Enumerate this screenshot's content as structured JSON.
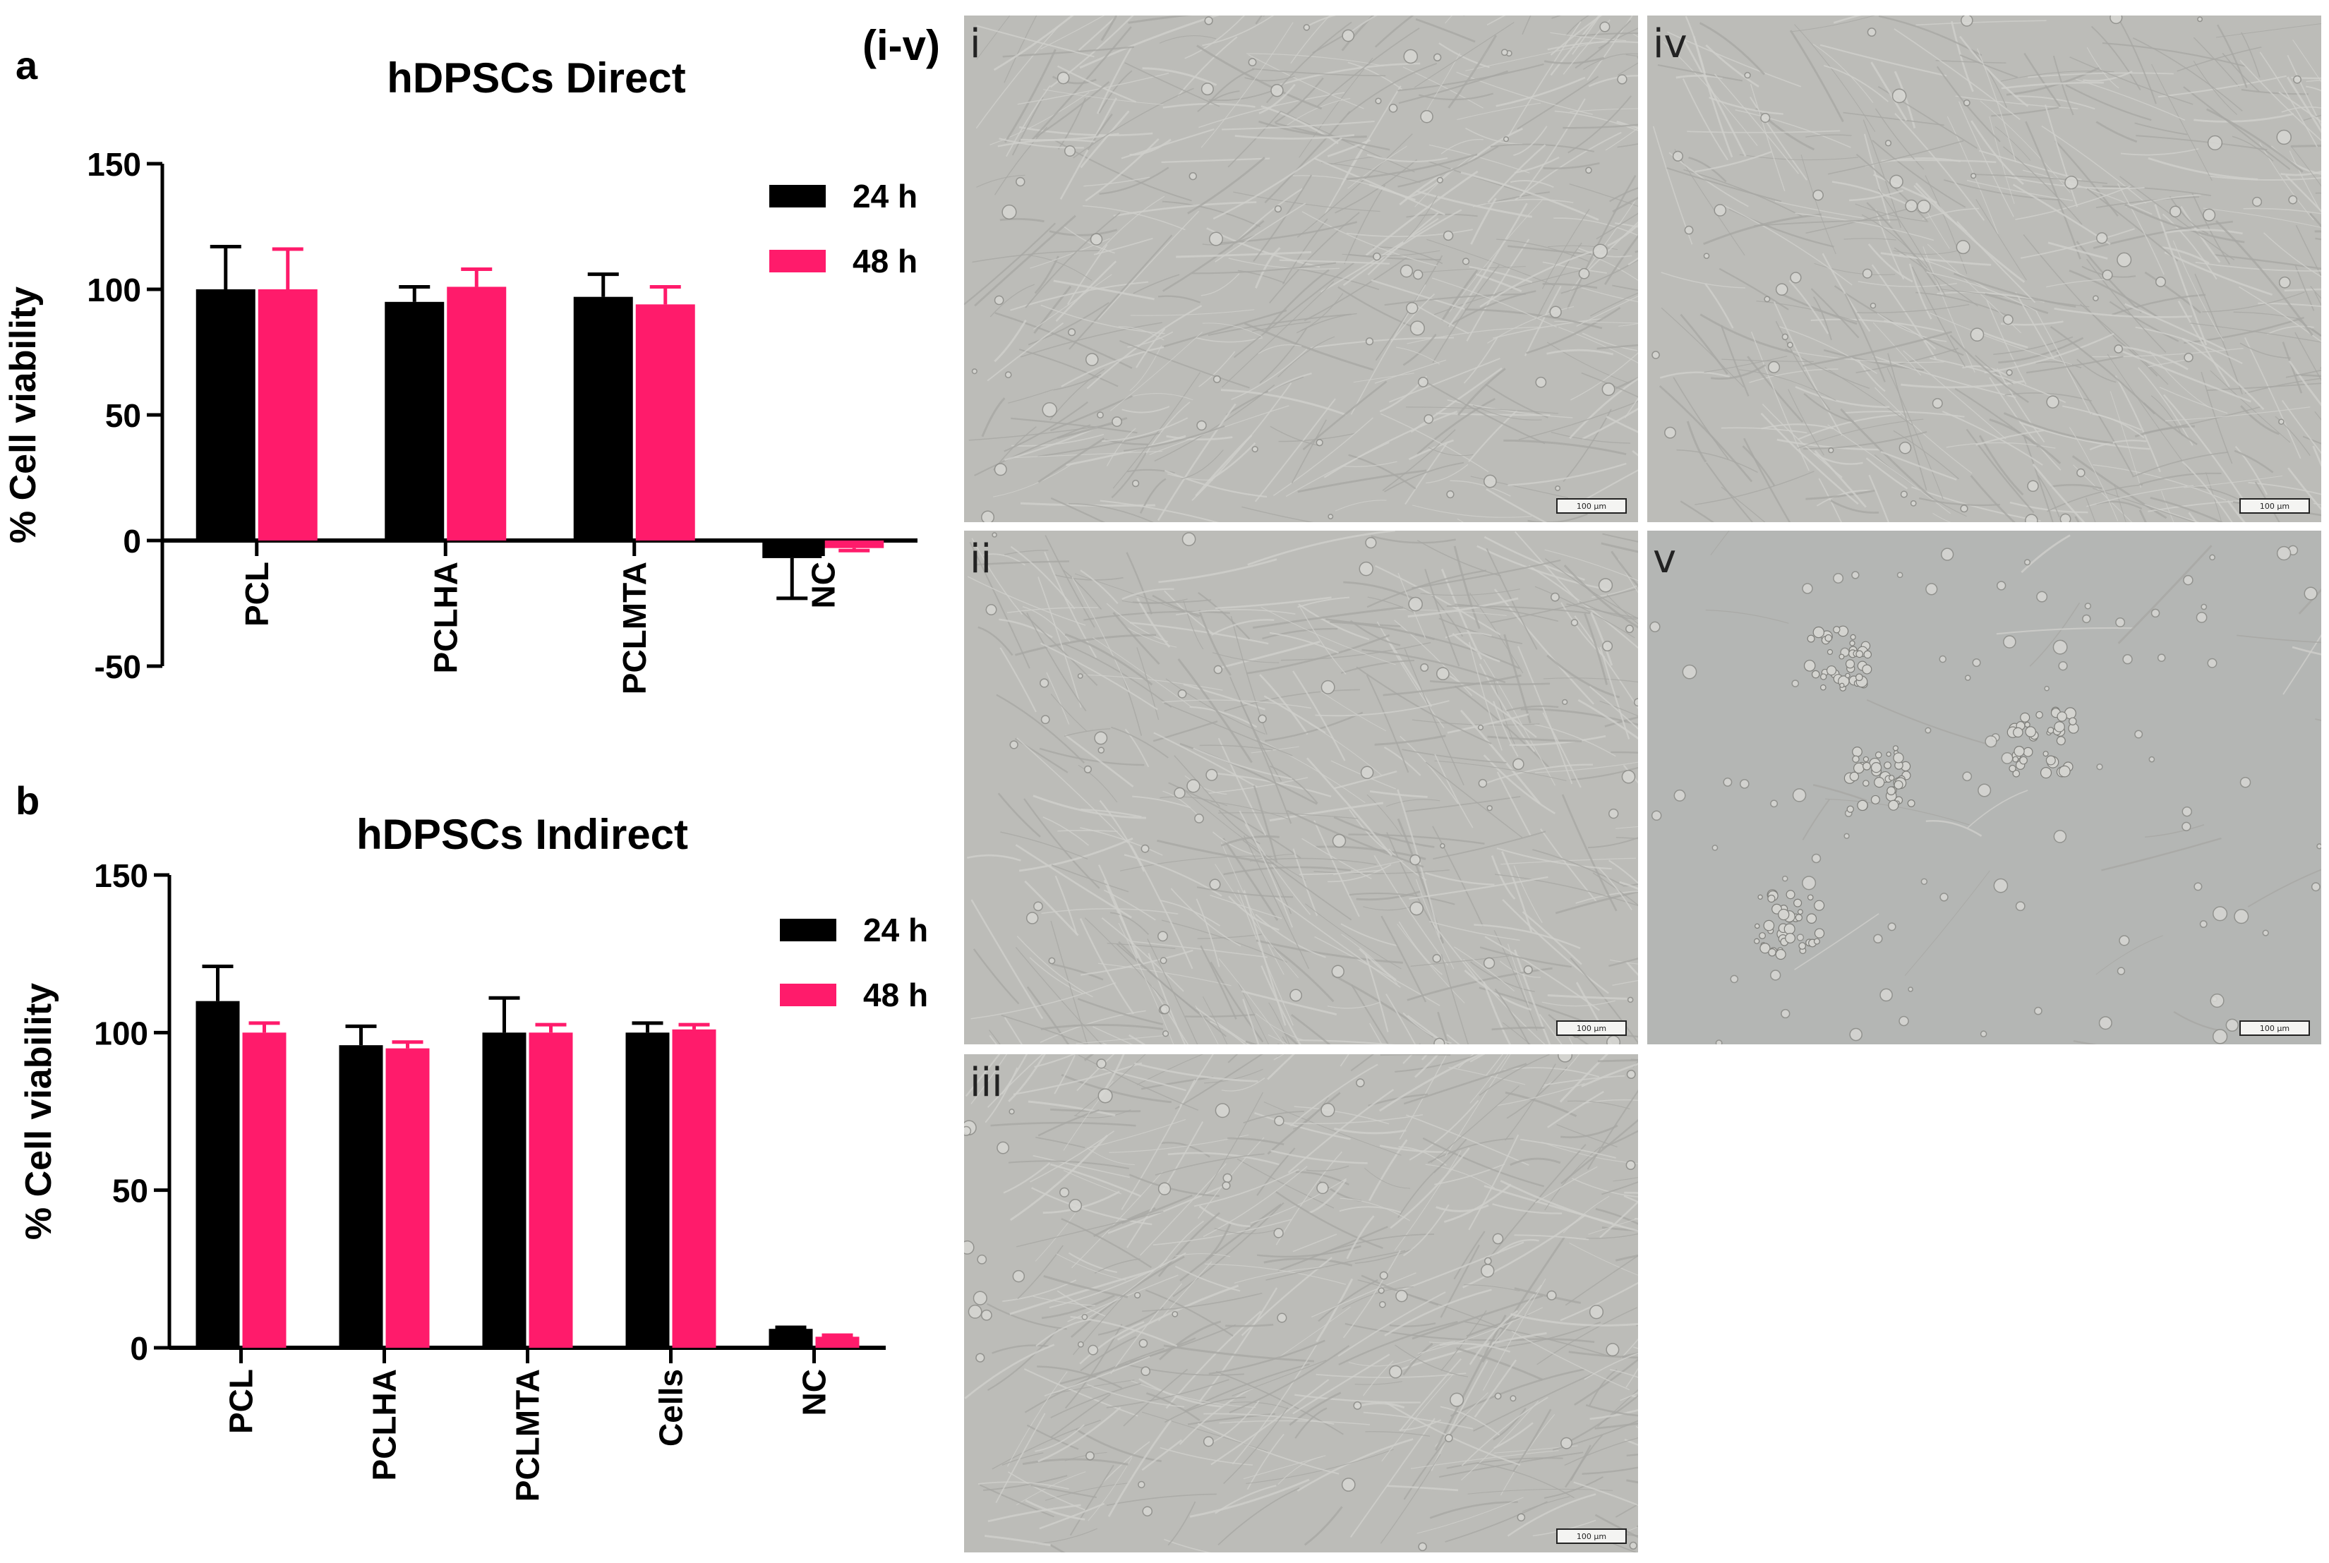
{
  "panel_letters": {
    "a": "a",
    "b": "b"
  },
  "micrograph_group_label": "(i-v)",
  "micrographs": [
    {
      "label": "i",
      "scalebar": "100 µm",
      "density": "dense"
    },
    {
      "label": "ii",
      "scalebar": "100 µm",
      "density": "dense"
    },
    {
      "label": "iii",
      "scalebar": "100 µm",
      "density": "dense"
    },
    {
      "label": "iv",
      "scalebar": "100 µm",
      "density": "dense"
    },
    {
      "label": "v",
      "scalebar": "100 µm",
      "density": "sparse"
    }
  ],
  "colors": {
    "h24": "#000000",
    "h48": "#ff1b6b",
    "micro_bg": "#bcbcb8",
    "micro_fiber": "#a8a8a4"
  },
  "chart_data": [
    {
      "type": "bar",
      "title": "hDPSCs Direct",
      "ylabel": "% Cell viability",
      "xlabel": "",
      "ylim": [
        -50,
        150
      ],
      "yticks": [
        -50,
        0,
        50,
        100,
        150
      ],
      "categories": [
        "PCL",
        "PCLHA",
        "PCLMTA",
        "NC"
      ],
      "series": [
        {
          "name": "24 h",
          "values": [
            100,
            95,
            97,
            -7
          ],
          "errors": [
            17,
            6,
            9,
            16
          ]
        },
        {
          "name": "48 h",
          "values": [
            100,
            101,
            94,
            -3
          ],
          "errors": [
            16,
            7,
            7,
            1
          ]
        }
      ],
      "legend": "top-right",
      "grid": false
    },
    {
      "type": "bar",
      "title": "hDPSCs Indirect",
      "ylabel": "% Cell viability",
      "xlabel": "",
      "ylim": [
        0,
        150
      ],
      "yticks": [
        0,
        50,
        100,
        150
      ],
      "categories": [
        "PCL",
        "PCLHA",
        "PCLMTA",
        "Cells",
        "NC"
      ],
      "series": [
        {
          "name": "24 h",
          "values": [
            110,
            96,
            100,
            100,
            6
          ],
          "errors": [
            11,
            6,
            11,
            3,
            0.5
          ]
        },
        {
          "name": "48 h",
          "values": [
            100,
            95,
            100,
            101,
            3.5
          ],
          "errors": [
            3,
            2,
            2.5,
            1.5,
            0.5
          ]
        }
      ],
      "legend": "top-right",
      "grid": false
    }
  ]
}
